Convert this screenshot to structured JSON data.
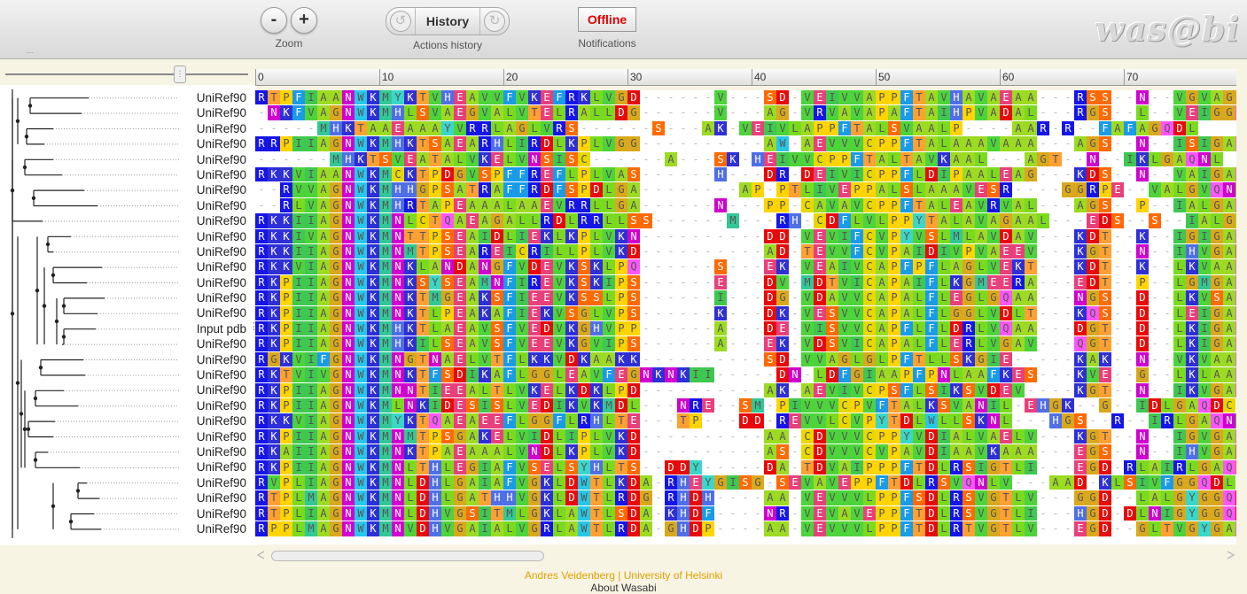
{
  "toolbar": {
    "zoom_out": "-",
    "zoom_in": "+",
    "zoom_caption": "Zoom",
    "history_label": "History",
    "history_caption": "Actions history",
    "offline_label": "Offline",
    "notifications_caption": "Notifications",
    "logo": "was@bi",
    "menu_dots": "..."
  },
  "ruler": [
    "0",
    "10",
    "20",
    "30",
    "40",
    "50",
    "60",
    "70"
  ],
  "sequences": [
    {
      "name": "UniRef90",
      "seq": "RTPFIAANWKMYKTVHEAVVFVKEFRKLVGD------V---SD-VEIVVAPPFTAVHAVAEAA---RSS--N--VGVAGGDL"
    },
    {
      "name": "UniRef90",
      "seq": "-NKFVAGNWKMHLSVAEGVALVTELRALLDG------V---AG-VRVAVAPAFTAIHPVADAL---RGS--L--VEIGGQNV"
    },
    {
      "name": "UniRef90",
      "seq": "-----MHKTAAEAAAYVRRLAGLVRS------S---AK-VEIVLAPPFTALSVAALP----AAR-R--FAFAGQDL"
    },
    {
      "name": "UniRef90",
      "seq": "RRPIIAGNWKMHKTSAEARHLIRDLKPLVGG----------AW-AEVVVCPPFTALAAAVAAA---AGS--N--ISIGAQNI"
    },
    {
      "name": "UniRef90",
      "seq": "------MHKTSVEATALVKELVNSISC------A---SK-HEIVVCPPFTALTAVKAAL---AGT--N--IKLGAQNL"
    },
    {
      "name": "UniRef90",
      "seq": "RKKVIAANWKMCKTPDGVSPFFREFLPLVAS------H---DR-DEIVICPPFLDIPAALEAG---KDS--N--VAIGAQNM"
    },
    {
      "name": "UniRef90",
      "seq": "--RVVAGNWKMHHGPSATRAFFRDFSPDLGA--------AP-PTLIVEPPALSLAAAVESR----GGRPE--VALGVQNL"
    },
    {
      "name": "UniRef90",
      "seq": "--RLVAGNWKMHRTAPEAAALAAEVRRLLGA------N---PP-CAVAVCPPFTALEAVRVAL---AGS--P--IALGAQNL"
    },
    {
      "name": "UniRef90",
      "seq": "RKKIIAGNWKMNLCTQAEAGALLRDLRRLLSS------M---RH-CDFLVLPPYTALAVAGAAL---EDS--S--IALGAQEI"
    },
    {
      "name": "UniRef90",
      "seq": "RKKIVAGNWKMNTTPSEAIDLIEKLKPLVKN----------DD-VEVIFCVPYVSLMLAVDAV---KDT--K--IGIGAQNF"
    },
    {
      "name": "UniRef90",
      "seq": "RKKIIAGNWKMNMTPSEAREICRILLPLVKD----------AD-TEVVFCVPAIDIVPVAEEV---KGT--N--IHVGAENL"
    },
    {
      "name": "UniRef90",
      "seq": "RKKVIAGNWKMNKLANDANGFVDEVKSKLPQ------S---EK-VEAIVCAPFPFLAGLVEKT---KDT--K--LKVAAQTM"
    },
    {
      "name": "UniRef90",
      "seq": "RKPIIAGNWKMNKSYSEAMNFIREVKSKIPS------E---DV-MDTVICAPAIFLKGMEERA---EDT--P--LGMGAQTM"
    },
    {
      "name": "UniRef90",
      "seq": "RKPIIAGNWKMNKTMGEAKSFIEEVKSSLPS------I---DG-VDAVVCAPALFLEGLGQAA---NGS--D--LKVSAQNM"
    },
    {
      "name": "UniRef90",
      "seq": "RKPIIAGNWKMNKTLPEAKAFIEKVSGLVPS------K---DK-VESVVCAPALFLGGLVDLT---KQS--D--LEIGAQNM"
    },
    {
      "name": "Input pdb",
      "seq": "RKPIIAGNWKMHKTLAEAVSFVEDVKGHVPP------A---DE-VISVVCAPFLFLDRLVQAA---DGT--D--LKIGAQTM"
    },
    {
      "name": "UniRef90",
      "seq": "RKPIIAGNWKMHKILSEAVSFVEEVKGVIPS------A---EK-VDSVICAPALFLERLVGAV---QGT--D--LKIGAQNM"
    },
    {
      "name": "UniRef90",
      "seq": "RGKVIFGNWKMNGTNAELVTFLKKVDKAAKK----------SD-VVAGLGLPFTLLSKGIE-----KAK--N--VKVAAQNV"
    },
    {
      "name": "UniRef90",
      "seq": "RKTVIVGNWKMNKTFSDIKAFLGGLEAVFEGNKNKII-----DN-LDFGIAAPFPNLAAFKES---KVE--G--LKLAAQDM"
    },
    {
      "name": "UniRef90",
      "seq": "RKPIIAGNWKMNNTIEEALTLVKELKDKLPD----------AK-AEVIVCPSFLSIKSVDEV----KGT--N--IKVGAQNL"
    },
    {
      "name": "UniRef90",
      "seq": "RKPIIAGNWKMLNKIDESISLVEDIKVKMDL---NRE--SM-PIVVVCPVFTALKSVANIL-EHGK--G--IDLGAQDC"
    },
    {
      "name": "UniRef90",
      "seq": "RKKVIAGNWKMYKTQAEAEEFLGGFLRHLTE---TP---DD-REVVLCVPYTDLWLLSKNL---HGS--R--IRLGAQNI"
    },
    {
      "name": "UniRef90",
      "seq": "RKPIIAGNWKMNMTPSGAKELVIDLIPLVKD----------AA-CDVVVCPPYVDIALVAELV---KGT--N--IGVGAQNI"
    },
    {
      "name": "UniRef90",
      "seq": "RKAIIAGNWKMNKTPAEAAALVNDLKPLVKD----------AS-CDVVVCVPAVDIAAVKAAA---EGS--N--IHVGAENV"
    },
    {
      "name": "UniRef90",
      "seq": "RKPIIAGNWKMNLTHLEGIAFVSELSYHLTS--DDY-----DA-TDVAIPPPFTDLRSIGTLI---EGD-RLAIRLGAQSC"
    },
    {
      "name": "UniRef90",
      "seq": "RVPLIAGNWKMNLDHLGAIAFVGKLDWTLKDA-RHEYGISG-SEVAVEPPFTDLRSVQNLV---AAD-KLSIVFGGQDL"
    },
    {
      "name": "UniRef90",
      "seq": "RTPLMAGNWKMNLDHLGATHHVGKLDWTLRDG-RHDH----AA-VEVVVLPPFSDLRSVGTLV---GGD--LALGYGGQDL"
    },
    {
      "name": "UniRef90",
      "seq": "RTPLIAGNWKMNLDHVGSITMLGKLAWTLSDA-KHDF----NR-VEVAVEPPFTDLRSVGTLI---HGD-DLNIGYGGQDL"
    },
    {
      "name": "UniRef90",
      "seq": "RPPLMAGNWKMNVDHVGAIALVGRLAWTLRDA-GHDP----AA-VEVVVLPPFTDLRTVGTLV---EGD--GLTVGYGAQDA"
    }
  ],
  "footer": {
    "author": "Andres Veidenberg",
    "sep": " | ",
    "org": "University of Helsinki",
    "about": "About Wasabi"
  },
  "colors": {
    "R": "#1515e8",
    "K": "#2f2fd8",
    "H": "#4f6fe8",
    "D": "#e80a0a",
    "E": "#e8407a",
    "S": "#ff6a00",
    "T": "#ffa033",
    "N": "#d000d0",
    "Q": "#ff55ff",
    "G": "#d9a81c",
    "P": "#ffd400",
    "A": "#9cdb22",
    "V": "#4cd43a",
    "L": "#7adb1e",
    "I": "#3fc850",
    "M": "#32c896",
    "F": "#1a9be8",
    "W": "#27c7e8",
    "Y": "#3ad6c8",
    "C": "#e8d800"
  }
}
